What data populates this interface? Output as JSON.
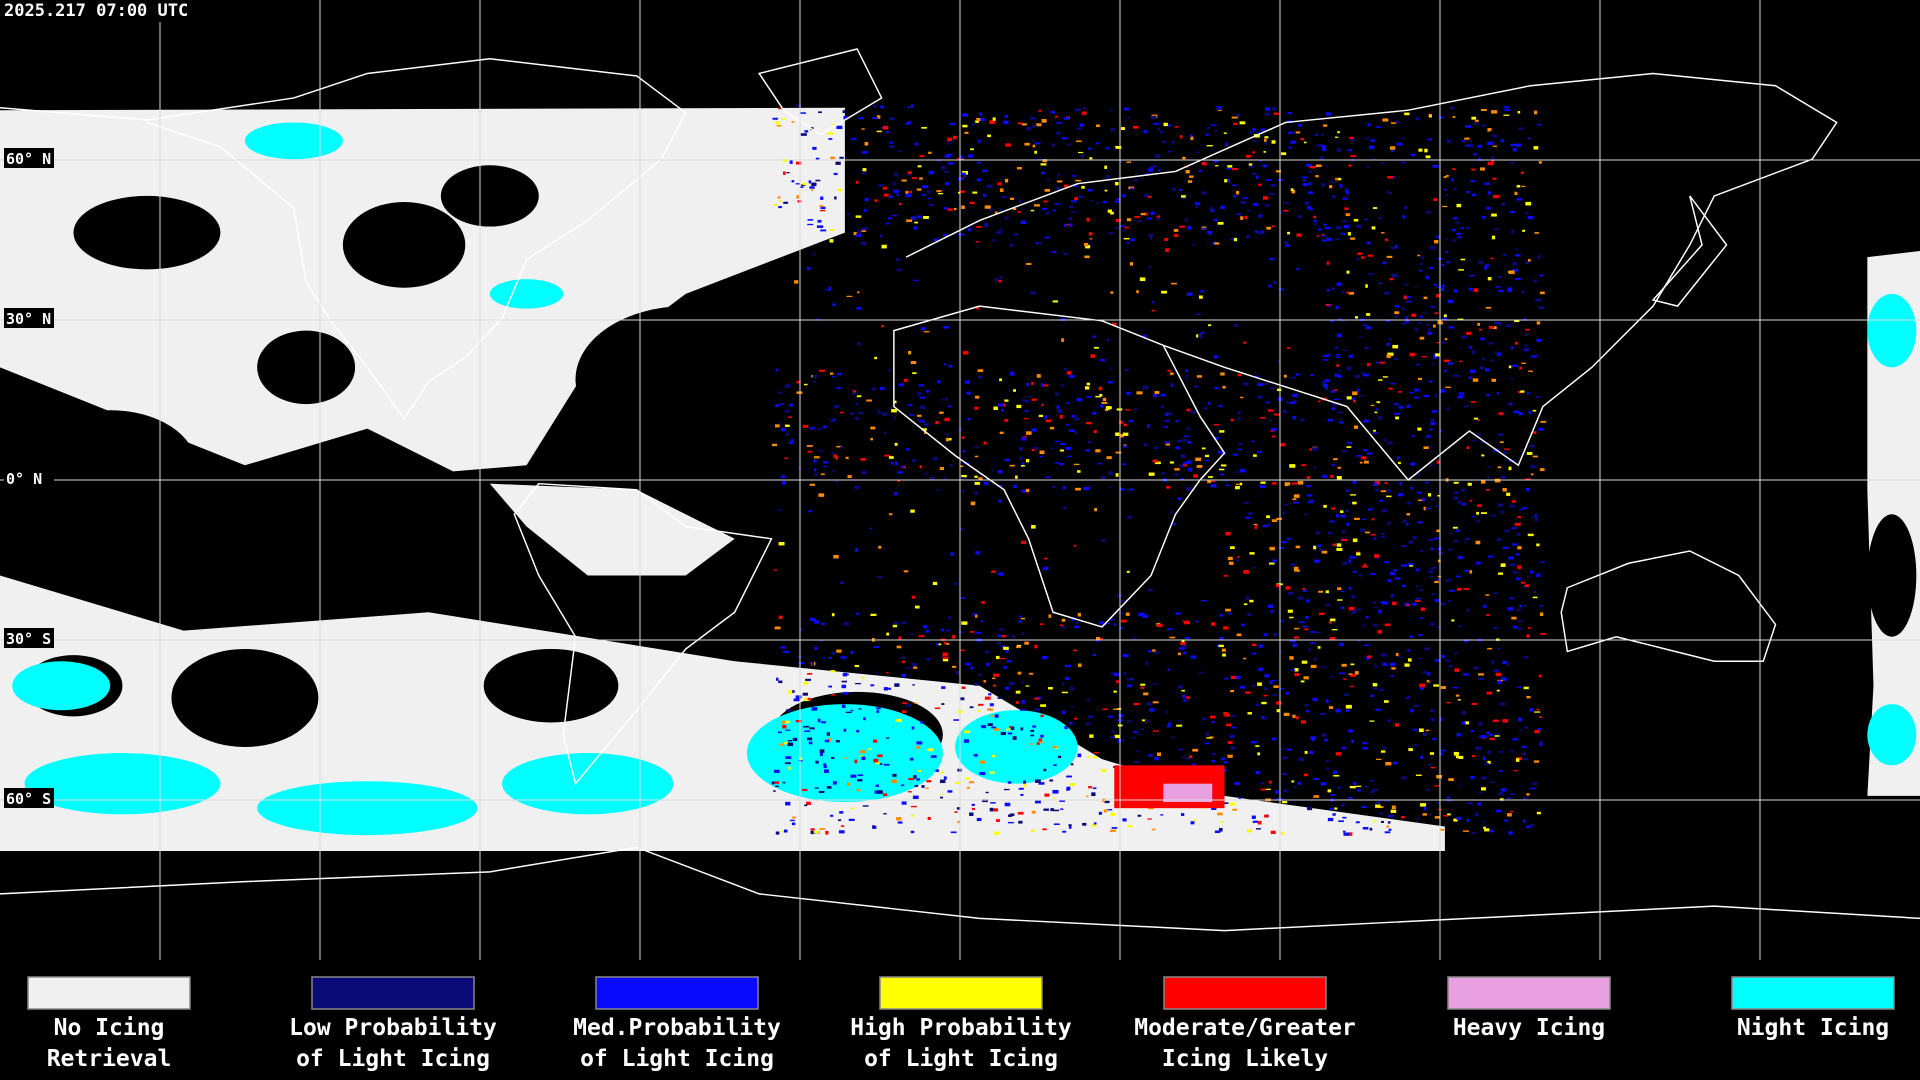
{
  "header": {
    "title": "2025.217 07:00 UTC"
  },
  "map": {
    "latitude_labels": [
      "60° N",
      "30° N",
      "0° N",
      "30° S",
      "60° S"
    ]
  },
  "legend": {
    "items": [
      {
        "label": [
          "No Icing",
          "Retrieval"
        ],
        "color": "#f0f0f0"
      },
      {
        "label": [
          "Low Probability",
          "of Light Icing"
        ],
        "color": "#0a0a78"
      },
      {
        "label": [
          "Med.Probability",
          "of Light Icing"
        ],
        "color": "#0a0aff"
      },
      {
        "label": [
          "High Probability",
          "of Light Icing"
        ],
        "color": "#ffff00"
      },
      {
        "label": [
          "Moderate/Greater",
          "Icing Likely"
        ],
        "color": "#ff0000"
      },
      {
        "label": [
          "Heavy Icing"
        ],
        "color": "#e8a0e0"
      },
      {
        "label": [
          "Night Icing"
        ],
        "color": "#00ffff"
      }
    ]
  }
}
